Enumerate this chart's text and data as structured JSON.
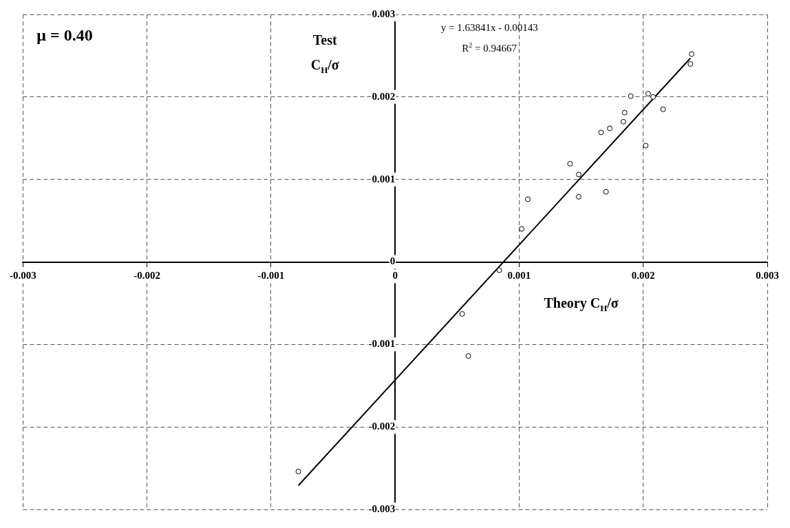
{
  "chart_data": {
    "type": "scatter",
    "xlabel": "Theory C$_{H}$/σ",
    "ylabel": "Test C$_{H}$/σ",
    "annotations": [
      "μ = 0.40",
      "y = 1.63841x - 0.00143",
      "R$^{2}$ = 0.94667"
    ],
    "xlim": [
      -0.003,
      0.003
    ],
    "xticks": [
      -0.003,
      -0.002,
      -0.001,
      0,
      0.001,
      0.002,
      0.003
    ],
    "ylim": [
      -0.003,
      0.003
    ],
    "yticks": [
      -0.003,
      -0.002,
      -0.001,
      0,
      0.001,
      0.002,
      0.003
    ],
    "grid": true,
    "legend": false,
    "series": [
      {
        "color": "#000000",
        "marker": "circle",
        "x": [
          -0.00078,
          0.00054,
          0.00059,
          0.00084,
          0.00102,
          0.00107,
          0.00141,
          0.00148,
          0.00148,
          0.0017,
          0.00166,
          0.00173,
          0.00184,
          0.00185,
          0.0019,
          0.00202,
          0.00204,
          0.00208,
          0.00216,
          0.00239,
          0.00238
        ],
        "values": [
          -0.00254,
          -0.00063,
          -0.00114,
          -0.0001,
          0.0004,
          0.00076,
          0.00119,
          0.00106,
          0.00079,
          0.00085,
          0.00157,
          0.00162,
          0.0017,
          0.00181,
          0.00201,
          0.00141,
          0.00204,
          0.002,
          0.00185,
          0.00252,
          0.0024
        ]
      },
      {
        "type": "line",
        "color": "#000000",
        "marker": "none",
        "line_style": "solid",
        "x": [
          -0.00078,
          0.00238
        ],
        "values": [
          -0.00271,
          0.00247
        ]
      }
    ]
  }
}
